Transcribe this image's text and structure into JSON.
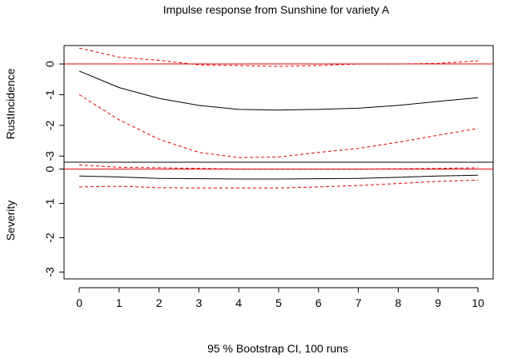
{
  "chart_data": {
    "type": "line",
    "title": "Impulse response from Sunshine for variety A",
    "footer": "95 % Bootstrap CI,  100 runs",
    "x": [
      0,
      1,
      2,
      3,
      4,
      5,
      6,
      7,
      8,
      9,
      10
    ],
    "x_ticks": [
      "0",
      "1",
      "2",
      "3",
      "4",
      "5",
      "6",
      "7",
      "8",
      "9",
      "10"
    ],
    "xlim": [
      0,
      10
    ],
    "colors": {
      "response": "#000000",
      "ci": "#e00000",
      "zero_line": "#e00000"
    },
    "panels": [
      {
        "ylabel": "RustIncidence",
        "ylim": [
          -3.2,
          0.6
        ],
        "y_ticks": [
          0,
          -1,
          -2,
          -3
        ],
        "y_tick_labels": [
          "0",
          "-1",
          "-2",
          "-3"
        ],
        "series": [
          {
            "role": "response",
            "values": [
              -0.23,
              -0.77,
              -1.12,
              -1.35,
              -1.48,
              -1.5,
              -1.48,
              -1.44,
              -1.35,
              -1.22,
              -1.1
            ]
          },
          {
            "role": "ci_upper",
            "values": [
              0.52,
              0.22,
              0.12,
              -0.03,
              -0.05,
              -0.08,
              -0.05,
              0.0,
              0.0,
              0.02,
              0.1
            ]
          },
          {
            "role": "ci_lower",
            "values": [
              -1.0,
              -1.82,
              -2.45,
              -2.88,
              -3.05,
              -3.03,
              -2.88,
              -2.75,
              -2.55,
              -2.32,
              -2.1
            ]
          }
        ]
      },
      {
        "ylabel": "Severity",
        "ylim": [
          -3.2,
          0.2
        ],
        "y_ticks": [
          0,
          -1,
          -2,
          -3
        ],
        "y_tick_labels": [
          "0",
          "-1",
          "-2",
          "-3"
        ],
        "series": [
          {
            "role": "response",
            "values": [
              -0.2,
              -0.23,
              -0.27,
              -0.28,
              -0.29,
              -0.29,
              -0.28,
              -0.27,
              -0.24,
              -0.2,
              -0.18
            ]
          },
          {
            "role": "ci_upper",
            "values": [
              0.12,
              0.05,
              0.04,
              0.02,
              0.0,
              0.0,
              0.0,
              0.0,
              0.01,
              0.02,
              0.04
            ]
          },
          {
            "role": "ci_lower",
            "values": [
              -0.52,
              -0.5,
              -0.54,
              -0.55,
              -0.55,
              -0.55,
              -0.52,
              -0.48,
              -0.42,
              -0.36,
              -0.32
            ]
          }
        ]
      }
    ]
  }
}
